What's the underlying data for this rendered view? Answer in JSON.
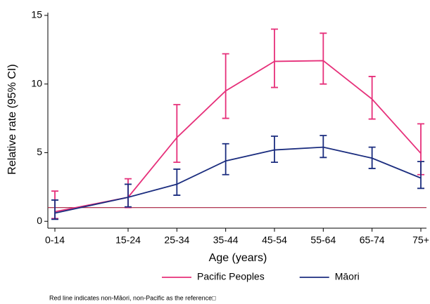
{
  "chart_data": {
    "type": "line",
    "y_label": "Relative rate (95% CI)",
    "x_label": "Age (years)",
    "categories": [
      "0-14",
      "15-24",
      "25-34",
      "35-44",
      "45-54",
      "55-64",
      "65-74",
      "75+"
    ],
    "series": [
      {
        "name": "Pacific Peoples",
        "color": "#e6307a",
        "values": [
          0.7,
          1.75,
          6.1,
          9.5,
          11.65,
          11.7,
          8.9,
          4.95
        ],
        "lower": [
          0.2,
          1.0,
          4.3,
          7.5,
          9.75,
          10.0,
          7.45,
          3.4
        ],
        "upper": [
          2.2,
          3.1,
          8.5,
          12.2,
          14.0,
          13.7,
          10.55,
          7.1
        ]
      },
      {
        "name": "Māori",
        "color": "#1b2d7f",
        "values": [
          0.6,
          1.75,
          2.7,
          4.4,
          5.2,
          5.4,
          4.6,
          3.15
        ],
        "lower": [
          0.15,
          1.05,
          1.9,
          3.4,
          4.3,
          4.65,
          3.85,
          2.4
        ],
        "upper": [
          1.55,
          2.7,
          3.8,
          5.65,
          6.2,
          6.25,
          5.4,
          4.35
        ]
      }
    ],
    "reference_line": {
      "value": 1,
      "color": "#a51c3c"
    },
    "ylim": [
      -0.5,
      15.2
    ],
    "yticks": [
      0,
      5,
      10,
      15
    ],
    "legend": "bottom",
    "note": "Red line indicates non-Māori, non-Pacific as the reference□"
  }
}
